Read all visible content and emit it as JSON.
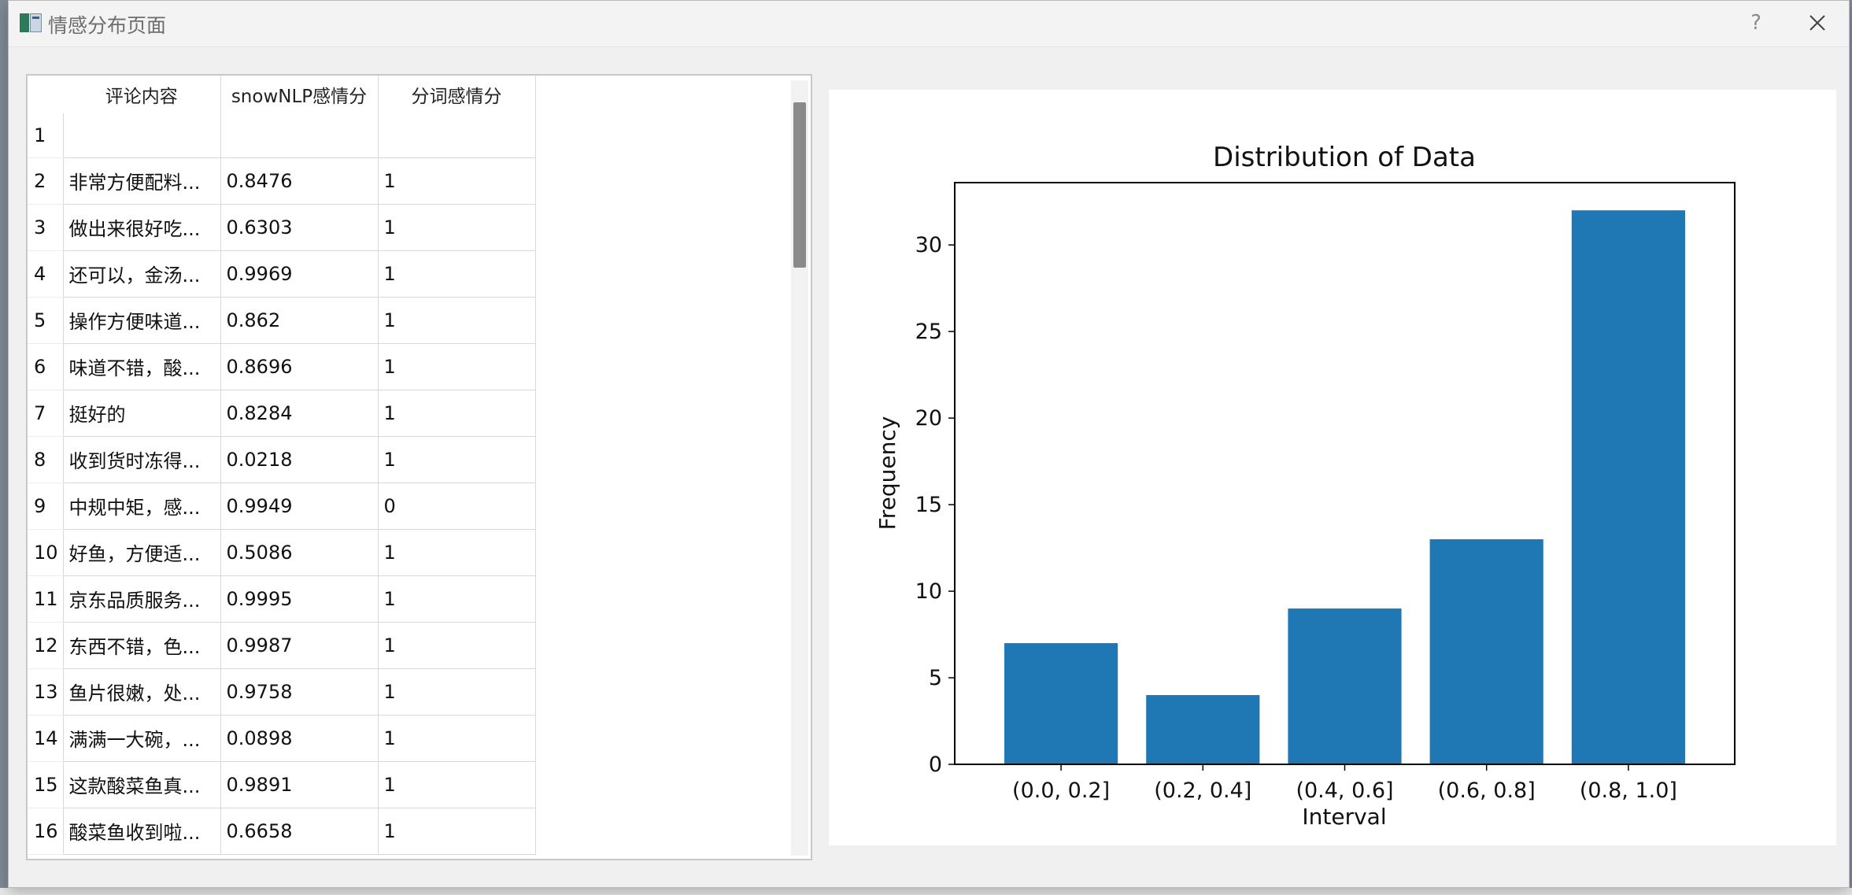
{
  "window": {
    "title": "情感分布页面",
    "help_glyph": "?",
    "close_glyph": "✕"
  },
  "table": {
    "columns": [
      "评论内容",
      "snowNLP感情分",
      "分词感情分"
    ],
    "rows": [
      {
        "num": "1",
        "comment": "",
        "snownlp": "",
        "fenci": ""
      },
      {
        "num": "2",
        "comment": "非常方便配料...",
        "snownlp": "0.8476",
        "fenci": "1"
      },
      {
        "num": "3",
        "comment": "做出来很好吃...",
        "snownlp": "0.6303",
        "fenci": "1"
      },
      {
        "num": "4",
        "comment": "还可以，金汤...",
        "snownlp": "0.9969",
        "fenci": "1"
      },
      {
        "num": "5",
        "comment": "操作方便味道...",
        "snownlp": "0.862",
        "fenci": "1"
      },
      {
        "num": "6",
        "comment": "味道不错，酸...",
        "snownlp": "0.8696",
        "fenci": "1"
      },
      {
        "num": "7",
        "comment": "挺好的",
        "snownlp": "0.8284",
        "fenci": "1"
      },
      {
        "num": "8",
        "comment": "收到货时冻得...",
        "snownlp": "0.0218",
        "fenci": "1"
      },
      {
        "num": "9",
        "comment": "中规中矩，感...",
        "snownlp": "0.9949",
        "fenci": "0"
      },
      {
        "num": "10",
        "comment": "好鱼，方便适...",
        "snownlp": "0.5086",
        "fenci": "1"
      },
      {
        "num": "11",
        "comment": "京东品质服务...",
        "snownlp": "0.9995",
        "fenci": "1"
      },
      {
        "num": "12",
        "comment": "东西不错，色...",
        "snownlp": "0.9987",
        "fenci": "1"
      },
      {
        "num": "13",
        "comment": "鱼片很嫩，处...",
        "snownlp": "0.9758",
        "fenci": "1"
      },
      {
        "num": "14",
        "comment": "满满一大碗，...",
        "snownlp": "0.0898",
        "fenci": "1"
      },
      {
        "num": "15",
        "comment": "这款酸菜鱼真...",
        "snownlp": "0.9891",
        "fenci": "1"
      },
      {
        "num": "16",
        "comment": "酸菜鱼收到啦...",
        "snownlp": "0.6658",
        "fenci": "1"
      }
    ]
  },
  "chart_data": {
    "type": "bar",
    "title": "Distribution of Data",
    "xlabel": "Interval",
    "ylabel": "Frequency",
    "categories": [
      "(0.0, 0.2]",
      "(0.2, 0.4]",
      "(0.4, 0.6]",
      "(0.6, 0.8]",
      "(0.8, 1.0]"
    ],
    "values": [
      7,
      4,
      9,
      13,
      32
    ],
    "ylim": [
      0,
      33.6
    ],
    "yticks": [
      0,
      5,
      10,
      15,
      20,
      25,
      30
    ],
    "bar_color": "#1f77b4",
    "grid": false,
    "legend": "none"
  }
}
